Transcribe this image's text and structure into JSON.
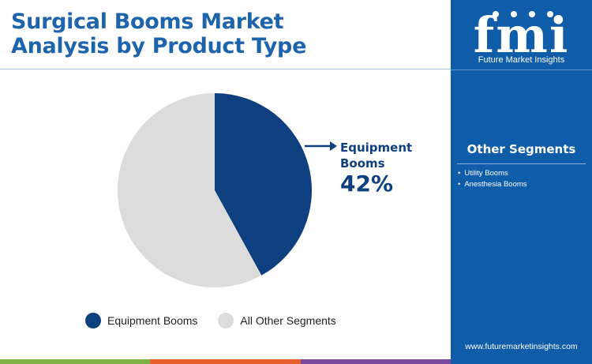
{
  "header": {
    "title_line1": "Surgical Booms Market",
    "title_line2": "Analysis by Product Type"
  },
  "brand": {
    "logo_text": "fmi",
    "tagline": "Future Market Insights",
    "website": "www.futuremarketinsights.com"
  },
  "sidebar": {
    "title": "Other Segments",
    "items": [
      "Utility Booms",
      "Anesthesia Booms"
    ]
  },
  "callout": {
    "label_line1": "Equipment",
    "label_line2": "Booms",
    "value": "42%"
  },
  "colors": {
    "title": "#1e64ad",
    "panel": "#0f5ca8",
    "primary_slice": "#0e3f7e",
    "other_slice": "#dcdcdc",
    "bar_green": "#7cb342",
    "bar_orange": "#e8602c",
    "bar_purple": "#7b4a9e"
  },
  "chart_data": {
    "type": "pie",
    "title": "Surgical Booms Market Analysis by Product Type",
    "slices": [
      {
        "name": "Equipment Booms",
        "value": 42,
        "color": "#0e3f7e"
      },
      {
        "name": "All Other Segments",
        "value": 58,
        "color": "#dcdcdc"
      }
    ],
    "legend": [
      "Equipment Booms",
      "All Other Segments"
    ],
    "legend_position": "bottom",
    "start_angle": "top, clockwise"
  }
}
